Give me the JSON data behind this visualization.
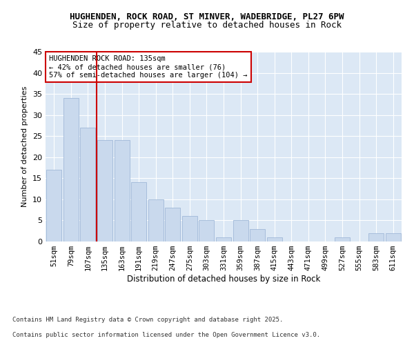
{
  "title1": "HUGHENDEN, ROCK ROAD, ST MINVER, WADEBRIDGE, PL27 6PW",
  "title2": "Size of property relative to detached houses in Rock",
  "xlabel": "Distribution of detached houses by size in Rock",
  "ylabel": "Number of detached properties",
  "categories": [
    "51sqm",
    "79sqm",
    "107sqm",
    "135sqm",
    "163sqm",
    "191sqm",
    "219sqm",
    "247sqm",
    "275sqm",
    "303sqm",
    "331sqm",
    "359sqm",
    "387sqm",
    "415sqm",
    "443sqm",
    "471sqm",
    "499sqm",
    "527sqm",
    "555sqm",
    "583sqm",
    "611sqm"
  ],
  "values": [
    17,
    34,
    27,
    24,
    24,
    14,
    10,
    8,
    6,
    5,
    1,
    5,
    3,
    1,
    0,
    0,
    0,
    1,
    0,
    2,
    2
  ],
  "bar_color": "#c9d9ed",
  "bar_edge_color": "#a0b8d8",
  "vline_color": "#cc0000",
  "vline_x_index": 3,
  "ylim": [
    0,
    45
  ],
  "yticks": [
    0,
    5,
    10,
    15,
    20,
    25,
    30,
    35,
    40,
    45
  ],
  "annotation_title": "HUGHENDEN ROCK ROAD: 135sqm",
  "annotation_line1": "← 42% of detached houses are smaller (76)",
  "annotation_line2": "57% of semi-detached houses are larger (104) →",
  "annotation_box_color": "#ffffff",
  "annotation_box_edge": "#cc0000",
  "footnote1": "Contains HM Land Registry data © Crown copyright and database right 2025.",
  "footnote2": "Contains public sector information licensed under the Open Government Licence v3.0.",
  "bg_color": "#dce8f5",
  "fig_bg": "#ffffff"
}
